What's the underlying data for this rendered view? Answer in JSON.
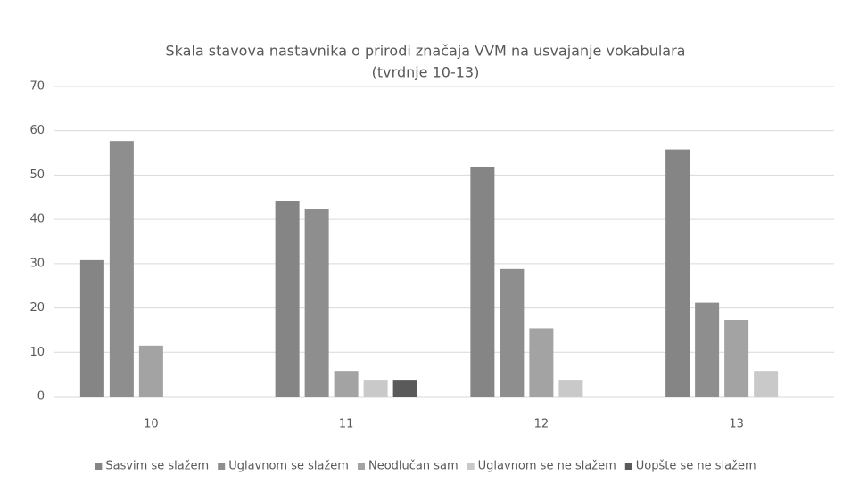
{
  "chart_data": {
    "type": "bar",
    "title": "Skala stavova nastavnika o prirodi značaja VVM na usvajanje vokabulara",
    "subtitle": "(tvrdnje 10-13)",
    "categories": [
      "10",
      "11",
      "12",
      "13"
    ],
    "series": [
      {
        "name": "Sasvim se slažem",
        "color": "#858585",
        "values": [
          30.8,
          44.2,
          51.9,
          55.8
        ]
      },
      {
        "name": "Uglavnom se slažem",
        "color": "#8e8e8e",
        "values": [
          57.7,
          42.3,
          28.8,
          21.2
        ]
      },
      {
        "name": "Neodlučan sam",
        "color": "#a3a3a3",
        "values": [
          11.5,
          5.8,
          15.4,
          17.3
        ]
      },
      {
        "name": "Uglavnom se ne slažem",
        "color": "#c9c9c9",
        "values": [
          0,
          3.8,
          3.8,
          5.8
        ]
      },
      {
        "name": "Uopšte se ne slažem",
        "color": "#5a5a5a",
        "values": [
          0,
          3.8,
          0,
          0
        ]
      }
    ],
    "ylim": [
      0,
      70
    ],
    "yticks": [
      0,
      10,
      20,
      30,
      40,
      50,
      60,
      70
    ],
    "grid": true,
    "legend": "bottom"
  }
}
